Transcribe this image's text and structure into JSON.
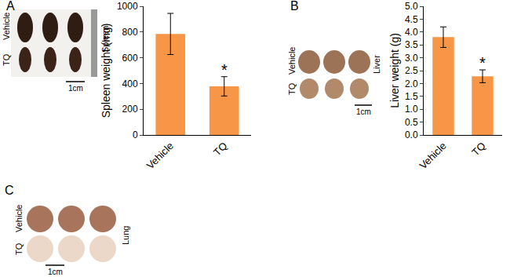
{
  "chart_data": [
    {
      "type": "bar",
      "ylabel": "Spleen weight (mg)",
      "categories": [
        "Vehicle",
        "TQ"
      ],
      "values": [
        785,
        378
      ],
      "errors": [
        160,
        75
      ],
      "color": "#f79646",
      "ylim": [
        0,
        1000
      ],
      "yticks": [
        0,
        200,
        400,
        600,
        800,
        1000
      ],
      "grid": false,
      "annotations": [
        {
          "category": "TQ",
          "text": "*"
        }
      ]
    },
    {
      "type": "bar",
      "ylabel": "Liver weight (g)",
      "categories": [
        "Vehicle",
        "TQ"
      ],
      "values": [
        3.8,
        2.28
      ],
      "errors": [
        0.4,
        0.25
      ],
      "color": "#f79646",
      "ylim": [
        0,
        5
      ],
      "yticks": [
        {
          "value": 0,
          "label": "0.0"
        },
        {
          "value": 0.5,
          "label": "0.5"
        },
        {
          "value": 1,
          "label": "1.0"
        },
        {
          "value": 1.5,
          "label": "1.5"
        },
        {
          "value": 2,
          "label": "2.0"
        },
        {
          "value": 2.5,
          "label": "2.5"
        },
        {
          "value": 3,
          "label": "3.0"
        },
        {
          "value": 3.5,
          "label": "3.5"
        },
        {
          "value": 4,
          "label": "4.0"
        },
        {
          "value": 4.5,
          "label": "4.5"
        },
        {
          "value": 5,
          "label": "5.0"
        }
      ],
      "grid": false,
      "annotations": [
        {
          "category": "TQ",
          "text": "*"
        }
      ]
    }
  ],
  "panels": [
    {
      "label": "A",
      "organ": "Spleen",
      "groups": [
        "Vehicle",
        "TQ"
      ],
      "scale_bar": "1cm"
    },
    {
      "label": "B",
      "organ": "Liver",
      "groups": [
        "Vehicle",
        "TQ"
      ],
      "scale_bar": "1cm"
    },
    {
      "label": "C",
      "organ": "Lung",
      "groups": [
        "Vehicle",
        "TQ"
      ],
      "scale_bar": "1cm"
    }
  ]
}
